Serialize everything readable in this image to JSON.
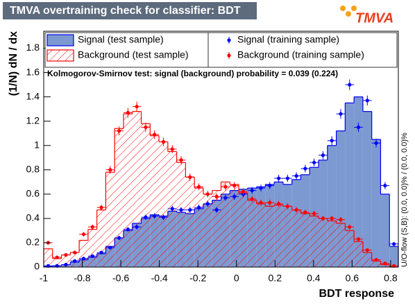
{
  "chart_data": {
    "type": "histogram",
    "title": "TMVA overtraining check for classifier: BDT",
    "logo": "TMVA",
    "x_label": "BDT response",
    "y_label": "(1/N) dN / dx",
    "annotation": "Kolmogorov-Smirnov test: signal (background) probability = 0.039 (0.224)",
    "overflow_note": "U/O-flow (S,B): (0.0, 0.0)% / (0.0, 0.0)%",
    "bins": [
      -1,
      -0.954,
      -0.908,
      -0.862,
      -0.816,
      -0.77,
      -0.724,
      -0.678,
      -0.632,
      -0.586,
      -0.54,
      -0.494,
      -0.448,
      -0.402,
      -0.356,
      -0.31,
      -0.264,
      -0.218,
      -0.172,
      -0.126,
      -0.08,
      -0.034,
      0.012,
      0.058,
      0.104,
      0.15,
      0.196,
      0.242,
      0.288,
      0.334,
      0.38,
      0.426,
      0.472,
      0.518,
      0.564,
      0.61,
      0.656,
      0.702,
      0.748,
      0.794,
      0.84
    ],
    "xlim": [
      -1,
      0.84
    ],
    "ylim": [
      0,
      1.94
    ],
    "xticks": [
      -1,
      -0.8,
      -0.6,
      -0.4,
      -0.2,
      0,
      0.2,
      0.4,
      0.6,
      0.8
    ],
    "yticks": [
      0,
      0.2,
      0.4,
      0.6,
      0.8,
      1,
      1.2,
      1.4,
      1.6,
      1.8
    ],
    "series": [
      {
        "name": "Signal (test sample)",
        "style": "filled",
        "color": "#7d99d1",
        "edge_color": "#0000ee",
        "values": [
          0.005,
          0.01,
          0.02,
          0.04,
          0.06,
          0.08,
          0.11,
          0.17,
          0.24,
          0.3,
          0.36,
          0.4,
          0.43,
          0.42,
          0.46,
          0.45,
          0.44,
          0.48,
          0.52,
          0.55,
          0.6,
          0.63,
          0.64,
          0.65,
          0.66,
          0.68,
          0.7,
          0.68,
          0.72,
          0.76,
          0.82,
          0.88,
          1.0,
          1.12,
          1.35,
          1.4,
          1.28,
          1.05,
          0.6,
          0.17
        ]
      },
      {
        "name": "Background (test sample)",
        "style": "hatched",
        "color": "#ff0000",
        "values": [
          0.15,
          0.07,
          0.1,
          0.12,
          0.22,
          0.31,
          0.47,
          0.78,
          1.14,
          1.26,
          1.28,
          1.18,
          1.08,
          1.03,
          0.95,
          0.86,
          0.74,
          0.65,
          0.6,
          0.63,
          0.7,
          0.68,
          0.61,
          0.55,
          0.52,
          0.5,
          0.51,
          0.5,
          0.47,
          0.44,
          0.42,
          0.4,
          0.38,
          0.36,
          0.3,
          0.21,
          0.12,
          0.05,
          0.02,
          0
        ]
      },
      {
        "name": "Signal (training sample)",
        "style": "points",
        "color": "#0000ff",
        "values": [
          0.01,
          0.01,
          0.02,
          0.05,
          0.07,
          0.09,
          0.12,
          0.16,
          0.24,
          0.31,
          0.33,
          0.41,
          0.42,
          0.41,
          0.48,
          0.47,
          0.47,
          0.49,
          0.52,
          0.47,
          0.57,
          0.58,
          0.6,
          0.63,
          0.65,
          0.67,
          0.73,
          0.73,
          0.75,
          0.81,
          0.86,
          0.92,
          1.04,
          1.26,
          1.5,
          1.15,
          1.37,
          1.02,
          0.67,
          0.19
        ],
        "errors": [
          0.004,
          0.004,
          0.005,
          0.008,
          0.009,
          0.01,
          0.012,
          0.014,
          0.017,
          0.019,
          0.02,
          0.022,
          0.023,
          0.022,
          0.024,
          0.024,
          0.024,
          0.025,
          0.025,
          0.024,
          0.026,
          0.027,
          0.027,
          0.028,
          0.028,
          0.029,
          0.03,
          0.03,
          0.03,
          0.031,
          0.032,
          0.034,
          0.036,
          0.039,
          0.043,
          0.038,
          0.041,
          0.035,
          0.029,
          0.015
        ]
      },
      {
        "name": "Background (training sample)",
        "style": "points",
        "color": "#ff0000",
        "values": [
          0.2,
          0.08,
          0.1,
          0.12,
          0.27,
          0.33,
          0.49,
          0.8,
          1.12,
          1.27,
          1.32,
          1.15,
          1.09,
          1.03,
          0.97,
          0.88,
          0.74,
          0.66,
          0.6,
          0.58,
          0.66,
          0.67,
          0.62,
          0.56,
          0.53,
          0.53,
          0.52,
          0.5,
          0.47,
          0.45,
          0.44,
          0.4,
          0.4,
          0.39,
          0.33,
          0.23,
          0.14,
          0.06,
          0.03,
          0.01
        ],
        "errors": [
          0.016,
          0.01,
          0.011,
          0.012,
          0.018,
          0.02,
          0.024,
          0.031,
          0.037,
          0.039,
          0.04,
          0.038,
          0.036,
          0.035,
          0.034,
          0.033,
          0.03,
          0.028,
          0.027,
          0.027,
          0.028,
          0.029,
          0.028,
          0.026,
          0.025,
          0.025,
          0.025,
          0.025,
          0.024,
          0.023,
          0.023,
          0.022,
          0.022,
          0.022,
          0.02,
          0.017,
          0.013,
          0.009,
          0.006,
          0.004
        ]
      }
    ]
  }
}
